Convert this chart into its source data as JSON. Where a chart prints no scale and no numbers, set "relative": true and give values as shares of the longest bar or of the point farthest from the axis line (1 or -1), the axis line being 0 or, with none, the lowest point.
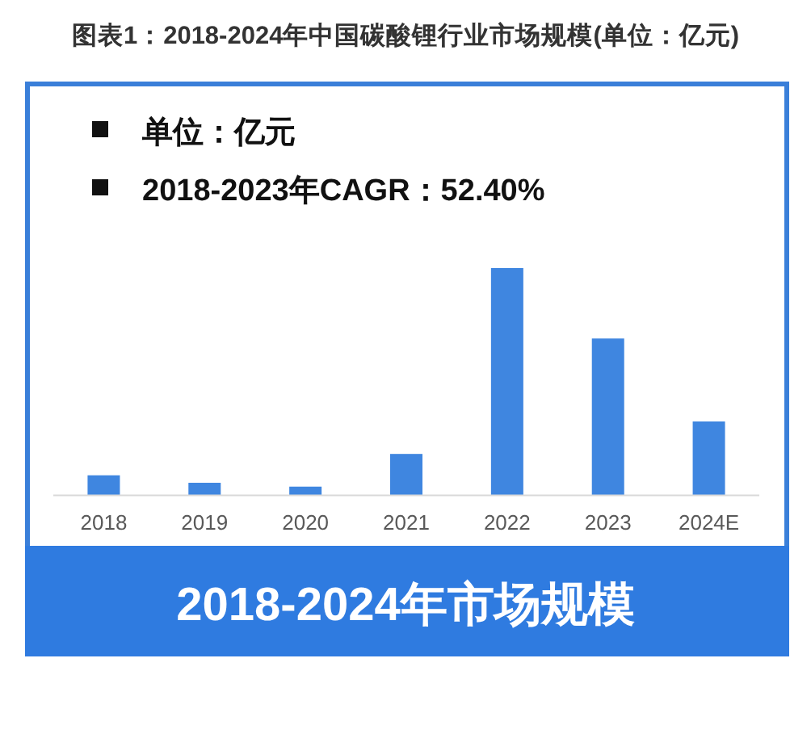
{
  "chart_data": {
    "type": "bar",
    "title": "图表1：2018-2024年中国碳酸锂行业市场规模(单位：亿元)",
    "xlabel": "2018-2024年市场规模",
    "annotations": [
      "单位：亿元",
      "2018-2023年CAGR：52.40%"
    ],
    "categories": [
      "2018",
      "2019",
      "2020",
      "2021",
      "2022",
      "2023",
      "2024E"
    ],
    "values": [
      0.088,
      0.055,
      0.038,
      0.182,
      1,
      0.69,
      0.325
    ],
    "color": "#3f86e0",
    "relative": true
  }
}
